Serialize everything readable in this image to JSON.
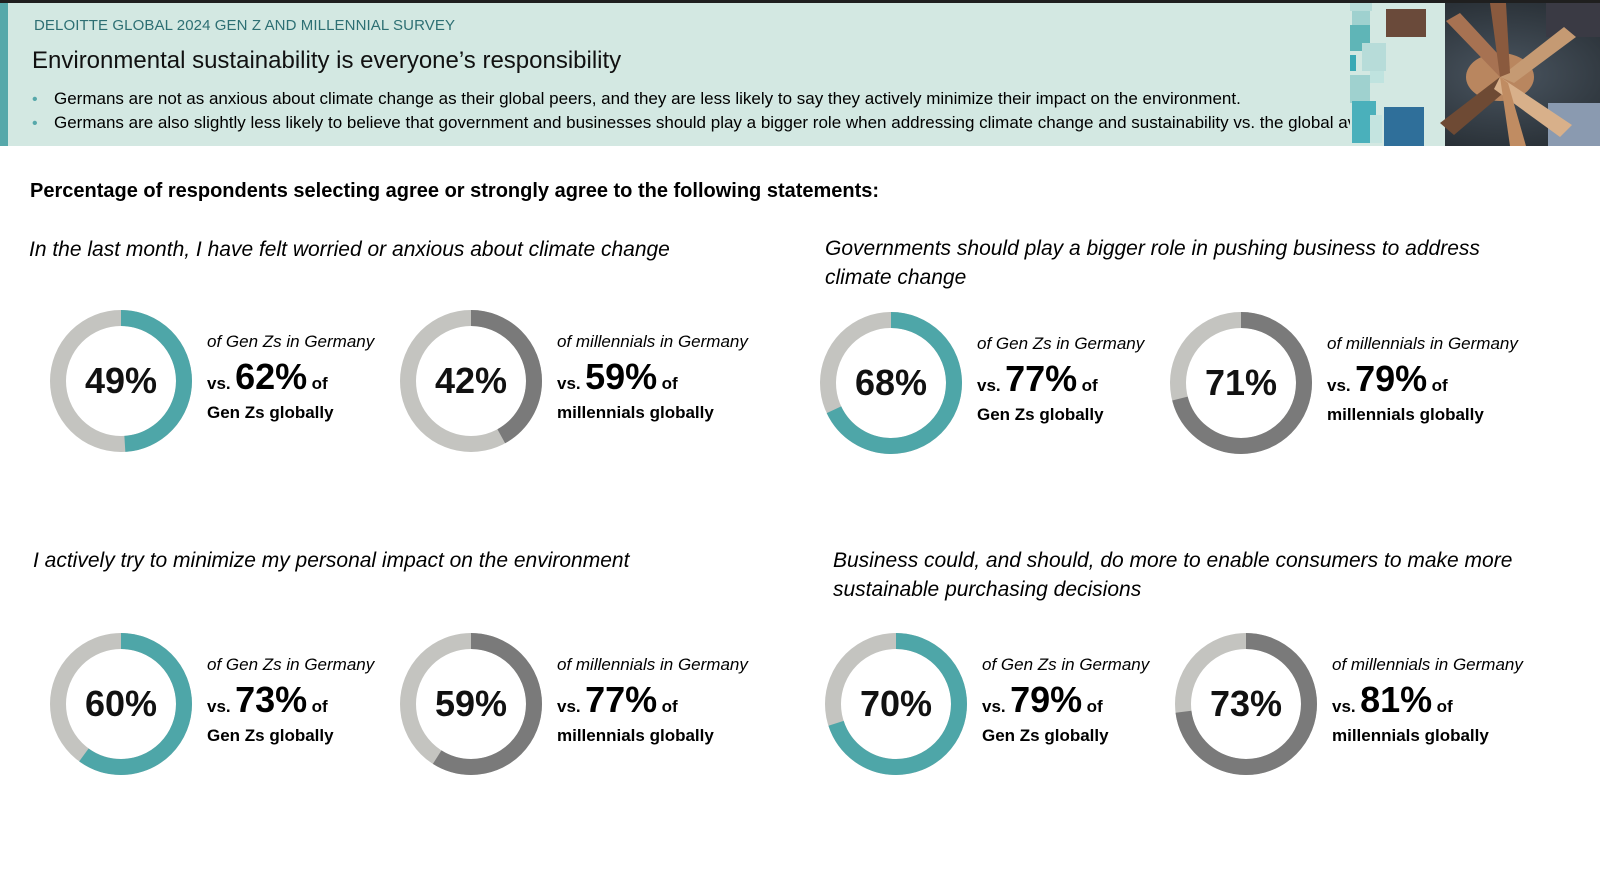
{
  "header": {
    "kicker": "DELOITTE GLOBAL 2024 GEN Z AND MILLENNIAL SURVEY",
    "title": "Environmental sustainability is everyone’s responsibility",
    "bullets": [
      "Germans are not as anxious about climate change as their global peers, and they are less likely to say they actively minimize their impact on the environment.",
      "Germans are also slightly less likely to believe that government and businesses should play a bigger role when addressing climate change and sustainability vs. the global average."
    ]
  },
  "colors": {
    "teal": "#4ea6a8",
    "gray": "#7a7a7a",
    "track": "#c4c4c0",
    "header_bg": "#d3e8e2"
  },
  "chart_data": {
    "type": "donut",
    "title": "Percentage of respondents selecting agree or strongly agree to the following statements:",
    "panels": [
      {
        "statement": "In the last month, I have felt worried or anxious about climate change",
        "items": [
          {
            "value": 49,
            "label": "49%",
            "context": "of Gen Zs in Germany",
            "global_label": "62%",
            "group": "Gen Zs globally",
            "color": "teal"
          },
          {
            "value": 42,
            "label": "42%",
            "context": "of millennials in Germany",
            "global_label": "59%",
            "group": "millennials globally",
            "color": "gray"
          }
        ]
      },
      {
        "statement": "Governments should play a bigger role in pushing business to address climate change",
        "items": [
          {
            "value": 68,
            "label": "68%",
            "context": "of Gen Zs in Germany",
            "global_label": "77%",
            "group": "Gen Zs globally",
            "color": "teal"
          },
          {
            "value": 71,
            "label": "71%",
            "context": "of millennials in Germany",
            "global_label": "79%",
            "group": "millennials globally",
            "color": "gray"
          }
        ]
      },
      {
        "statement": "I actively try to minimize my personal impact on the environment",
        "items": [
          {
            "value": 60,
            "label": "60%",
            "context": "of Gen Zs in Germany",
            "global_label": "73%",
            "group": "Gen Zs globally",
            "color": "teal"
          },
          {
            "value": 59,
            "label": "59%",
            "context": "of millennials in Germany",
            "global_label": "77%",
            "group": "millennials globally",
            "color": "gray"
          }
        ]
      },
      {
        "statement": "Business could, and should, do more to enable consumers to make more sustainable purchasing decisions",
        "items": [
          {
            "value": 70,
            "label": "70%",
            "context": "of Gen Zs in Germany",
            "global_label": "79%",
            "group": "Gen Zs globally",
            "color": "teal"
          },
          {
            "value": 73,
            "label": "73%",
            "context": "of millennials in Germany",
            "global_label": "81%",
            "group": "millennials globally",
            "color": "gray"
          }
        ]
      }
    ]
  },
  "labels": {
    "vs": "vs.",
    "of": "of"
  }
}
